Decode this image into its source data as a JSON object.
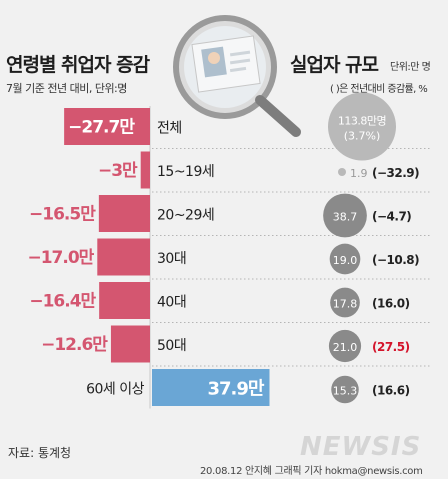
{
  "left_title": "연령별 취업자 증감",
  "left_subtitle": "7월 기준 전년 대비, 단위:명",
  "right_title": "실업자 규모",
  "right_unit": "단위:만 명",
  "right_note": "( )은 전년대비 증감률, %",
  "source": "자료: 통계청",
  "credit": "20.08.12 안지혜 그래픽 기자 hokma@newsis.com",
  "logo": "NEWSIS",
  "colors": {
    "negative_bar": "#d45670",
    "positive_bar": "#6aa6d5",
    "bubble": "#8a8a8a",
    "bubble_light": "#b9b9b9",
    "highlight_red": "#d4142b"
  },
  "chart_data": [
    {
      "type": "bar",
      "categories": [
        "전체",
        "15~19세",
        "20~29세",
        "30대",
        "40대",
        "50대",
        "60세 이상"
      ],
      "values": [
        -27.7,
        -3,
        -16.5,
        -17.0,
        -16.4,
        -12.6,
        37.9
      ],
      "labels": [
        "−27.7만",
        "−3만",
        "−16.5만",
        "−17.0만",
        "−16.4만",
        "−12.6만",
        "37.9만"
      ],
      "title": "연령별 취업자 증감",
      "subtitle": "7월 기준 전년 대비, 단위:명",
      "orientation": "horizontal"
    },
    {
      "type": "scatter",
      "title": "실업자 규모",
      "unit": "단위:만 명",
      "note": "( )은 전년대비 증감률, %",
      "categories": [
        "전체",
        "15~19세",
        "20~29세",
        "30대",
        "40대",
        "50대",
        "60세 이상"
      ],
      "values": [
        113.8,
        1.9,
        38.7,
        19.0,
        17.8,
        21.0,
        15.3
      ],
      "value_labels": [
        "113.8만명",
        "1.9",
        "38.7",
        "19.0",
        "17.8",
        "21.0",
        "15.3"
      ],
      "rates": [
        3.7,
        -32.9,
        -4.7,
        -10.8,
        16.0,
        27.5,
        16.6
      ],
      "rate_labels": [
        "(3.7%)",
        "(−32.9)",
        "(−4.7)",
        "(−10.8)",
        "(16.0)",
        "(27.5)",
        "(16.6)"
      ],
      "highlight": [
        "",
        "",
        "",
        "",
        "",
        "27.5",
        ""
      ]
    }
  ]
}
